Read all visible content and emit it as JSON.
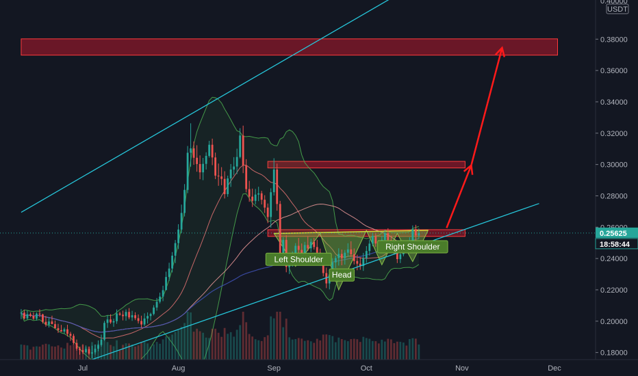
{
  "chart_data": {
    "type": "candlestick",
    "title": "",
    "currency_label": "USDT",
    "y_range": [
      0.165,
      0.405
    ],
    "y_ticks": [
      0.18,
      0.2,
      0.22,
      0.24,
      0.26,
      0.28,
      0.3,
      0.32,
      0.34,
      0.36,
      0.38
    ],
    "y_tick_labels": [
      "0.18000",
      "0.20000",
      "0.22000",
      "0.24000",
      "0.26000",
      "0.28000",
      "0.30000",
      "0.32000",
      "0.34000",
      "0.36000",
      "0.38000"
    ],
    "top_cut_label": "0.40000",
    "x_range": [
      -20,
      154
    ],
    "x_ticks": [
      {
        "label": "Jul",
        "day": 0
      },
      {
        "label": "Aug",
        "day": 31
      },
      {
        "label": "Sep",
        "day": 62
      },
      {
        "label": "Oct",
        "day": 92
      },
      {
        "label": "Nov",
        "day": 123
      },
      {
        "label": "Dec",
        "day": 153
      }
    ],
    "current_price": {
      "value": 0.25625,
      "label": "0.25625",
      "countdown": "18:58:44"
    },
    "grid": false,
    "colors": {
      "background": "#131722",
      "up": "#26a69a",
      "down": "#ef5350",
      "zone": "#b2182b",
      "trendline": "#26c6da",
      "arrow": "#ff1a1a",
      "pattern_fill": "#7cb342",
      "ma_slow": "#3f51b5",
      "ma_mid": "#e57373",
      "band": "#4caf50"
    },
    "zones": [
      {
        "y_low": 0.3698,
        "y_high": 0.3802,
        "day_from": -20,
        "day_to": 154
      },
      {
        "y_low": 0.2978,
        "y_high": 0.302,
        "day_from": 60,
        "day_to": 124
      },
      {
        "y_low": 0.2541,
        "y_high": 0.2584,
        "day_from": 60,
        "day_to": 124
      }
    ],
    "trendlines": [
      {
        "from": [
          -20,
          0.2695
        ],
        "to": [
          103,
          0.4095
        ]
      },
      {
        "from": [
          -13,
          0.1645
        ],
        "to": [
          148,
          0.2751
        ]
      }
    ],
    "projection_arrows": [
      {
        "from": [
          118,
          0.2595
        ],
        "to": [
          126,
          0.2995
        ]
      },
      {
        "from": [
          126,
          0.2995
        ],
        "to": [
          136,
          0.3745
        ]
      }
    ],
    "pattern": {
      "points": [
        [
          62,
          0.256
        ],
        [
          69,
          0.235
        ],
        [
          77,
          0.256
        ],
        [
          83,
          0.22
        ],
        [
          92,
          0.258
        ],
        [
          97,
          0.236
        ],
        [
          102,
          0.256
        ],
        [
          107,
          0.238
        ],
        [
          112,
          0.258
        ]
      ],
      "labels": [
        {
          "text": "Left Shoulder",
          "day": 70,
          "value": 0.2395
        },
        {
          "text": "Head",
          "day": 84,
          "value": 0.2295
        },
        {
          "text": "Right Shoulder",
          "day": 107,
          "value": 0.2475
        }
      ]
    },
    "series": [
      {
        "kind": "ohlc",
        "step_days": 1,
        "start_day": -20,
        "values": [
          [
            0.2052,
            0.2077,
            0.2013,
            0.2054
          ],
          [
            0.2054,
            0.2072,
            0.2011,
            0.2018
          ],
          [
            0.2018,
            0.2067,
            0.2009,
            0.2044
          ],
          [
            0.2044,
            0.2056,
            0.2026,
            0.2034
          ],
          [
            0.2034,
            0.2057,
            0.2008,
            0.2016
          ],
          [
            0.2016,
            0.2056,
            0.2004,
            0.2048
          ],
          [
            0.2048,
            0.2076,
            0.2026,
            0.2043
          ],
          [
            0.2043,
            0.2048,
            0.1985,
            0.1996
          ],
          [
            0.1996,
            0.2034,
            0.1965,
            0.1978
          ],
          [
            0.1978,
            0.2024,
            0.1959,
            0.1998
          ],
          [
            0.1998,
            0.2035,
            0.1983,
            0.1981
          ],
          [
            0.1981,
            0.2004,
            0.1954,
            0.1955
          ],
          [
            0.1955,
            0.1983,
            0.1925,
            0.1943
          ],
          [
            0.1943,
            0.1976,
            0.1932,
            0.1934
          ],
          [
            0.1934,
            0.1959,
            0.1922,
            0.1948
          ],
          [
            0.1948,
            0.1977,
            0.1902,
            0.1919
          ],
          [
            0.1919,
            0.1932,
            0.1874,
            0.1906
          ],
          [
            0.1906,
            0.1919,
            0.1852,
            0.1861
          ],
          [
            0.1861,
            0.1883,
            0.1812,
            0.1824
          ],
          [
            0.1824,
            0.1836,
            0.1786,
            0.1815
          ],
          [
            0.1815,
            0.1853,
            0.1792,
            0.1802
          ],
          [
            0.1802,
            0.1845,
            0.1798,
            0.1822
          ],
          [
            0.1822,
            0.1837,
            0.1786,
            0.1793
          ],
          [
            0.1793,
            0.1843,
            0.1763,
            0.1801
          ],
          [
            0.1801,
            0.1851,
            0.1787,
            0.1824
          ],
          [
            0.1824,
            0.1877,
            0.1808,
            0.1848
          ],
          [
            0.1848,
            0.1914,
            0.1837,
            0.1883
          ],
          [
            0.1883,
            0.2002,
            0.1875,
            0.1989
          ],
          [
            0.1989,
            0.2037,
            0.1957,
            0.2011
          ],
          [
            0.2011,
            0.2044,
            0.1983,
            0.1992
          ],
          [
            0.1992,
            0.2016,
            0.1964,
            0.2
          ],
          [
            0.2,
            0.2075,
            0.1983,
            0.2049
          ],
          [
            0.2049,
            0.206,
            0.2035,
            0.2041
          ],
          [
            0.2041,
            0.2067,
            0.2005,
            0.2032
          ],
          [
            0.2032,
            0.2075,
            0.2003,
            0.2059
          ],
          [
            0.2059,
            0.2083,
            0.2012,
            0.2024
          ],
          [
            0.2024,
            0.2066,
            0.2002,
            0.2038
          ],
          [
            0.2038,
            0.2057,
            0.2007,
            0.2019
          ],
          [
            0.2019,
            0.2043,
            0.1985,
            0.2001
          ],
          [
            0.2001,
            0.2035,
            0.1958,
            0.1979
          ],
          [
            0.1979,
            0.205,
            0.1969,
            0.2017
          ],
          [
            0.2017,
            0.2056,
            0.1985,
            0.2033
          ],
          [
            0.2033,
            0.2054,
            0.2005,
            0.2046
          ],
          [
            0.2046,
            0.2102,
            0.2037,
            0.2087
          ],
          [
            0.2087,
            0.2148,
            0.2067,
            0.2124
          ],
          [
            0.2124,
            0.2182,
            0.2113,
            0.2157
          ],
          [
            0.2157,
            0.2226,
            0.2128,
            0.2198
          ],
          [
            0.2198,
            0.2316,
            0.2198,
            0.2282
          ],
          [
            0.2282,
            0.2373,
            0.2257,
            0.2336
          ],
          [
            0.2336,
            0.2441,
            0.2311,
            0.2418
          ],
          [
            0.2418,
            0.2518,
            0.2371,
            0.2498
          ],
          [
            0.2498,
            0.2619,
            0.246,
            0.2585
          ],
          [
            0.2585,
            0.2744,
            0.2562,
            0.2691
          ],
          [
            0.2691,
            0.2875,
            0.2668,
            0.2838
          ],
          [
            0.2838,
            0.3118,
            0.2817,
            0.3075
          ],
          [
            0.3075,
            0.3263,
            0.2986,
            0.3103
          ],
          [
            0.3103,
            0.3147,
            0.2998,
            0.3043
          ],
          [
            0.3043,
            0.3123,
            0.2954,
            0.3003
          ],
          [
            0.3003,
            0.3058,
            0.2906,
            0.295
          ],
          [
            0.295,
            0.3042,
            0.29,
            0.3004
          ],
          [
            0.3004,
            0.3078,
            0.2968,
            0.3055
          ],
          [
            0.3055,
            0.3151,
            0.3044,
            0.3126
          ],
          [
            0.3126,
            0.3165,
            0.2996,
            0.3045
          ],
          [
            0.3045,
            0.3076,
            0.2907,
            0.2929
          ],
          [
            0.2929,
            0.3006,
            0.2864,
            0.2924
          ],
          [
            0.2924,
            0.2983,
            0.2868,
            0.2908
          ],
          [
            0.2908,
            0.2957,
            0.2783,
            0.2811
          ],
          [
            0.2811,
            0.2929,
            0.2794,
            0.2911
          ],
          [
            0.2911,
            0.3003,
            0.2857,
            0.2968
          ],
          [
            0.2968,
            0.3047,
            0.2931,
            0.2987
          ],
          [
            0.2987,
            0.3101,
            0.2939,
            0.3048
          ],
          [
            0.3048,
            0.3232,
            0.3039,
            0.3185
          ],
          [
            0.3185,
            0.3248,
            0.2945,
            0.2994
          ],
          [
            0.2994,
            0.3034,
            0.2822,
            0.2843
          ],
          [
            0.2843,
            0.2896,
            0.2762,
            0.2795
          ],
          [
            0.2795,
            0.2846,
            0.2729,
            0.2768
          ],
          [
            0.2768,
            0.2844,
            0.2745,
            0.2808
          ],
          [
            0.2808,
            0.2858,
            0.2766,
            0.2816
          ],
          [
            0.2816,
            0.2832,
            0.2745,
            0.2775
          ],
          [
            0.2775,
            0.2804,
            0.2691,
            0.2725
          ],
          [
            0.2725,
            0.2751,
            0.2626,
            0.2665
          ],
          [
            0.2665,
            0.2848,
            0.2597,
            0.2823
          ],
          [
            0.2823,
            0.304,
            0.2802,
            0.2968
          ],
          [
            0.2968,
            0.3006,
            0.2705,
            0.2748
          ],
          [
            0.2748,
            0.2768,
            0.2384,
            0.2417
          ],
          [
            0.2417,
            0.2536,
            0.2357,
            0.2519
          ],
          [
            0.2519,
            0.2548,
            0.2312,
            0.2347
          ],
          [
            0.2347,
            0.2413,
            0.2301,
            0.2363
          ],
          [
            0.2363,
            0.2445,
            0.2348,
            0.2425
          ],
          [
            0.2425,
            0.2498,
            0.2398,
            0.2481
          ],
          [
            0.2481,
            0.2531,
            0.2424,
            0.2455
          ],
          [
            0.2455,
            0.2496,
            0.2393,
            0.243
          ],
          [
            0.243,
            0.2506,
            0.2418,
            0.2486
          ],
          [
            0.2486,
            0.254,
            0.2448,
            0.2465
          ],
          [
            0.2465,
            0.2526,
            0.2441,
            0.2506
          ],
          [
            0.2506,
            0.2532,
            0.2457,
            0.2473
          ],
          [
            0.2473,
            0.252,
            0.2418,
            0.2437
          ],
          [
            0.2437,
            0.2463,
            0.2372,
            0.2398
          ],
          [
            0.2398,
            0.2416,
            0.2286,
            0.2307
          ],
          [
            0.2307,
            0.2342,
            0.2211,
            0.2241
          ],
          [
            0.2241,
            0.233,
            0.2203,
            0.2298
          ],
          [
            0.2298,
            0.2402,
            0.2282,
            0.2375
          ],
          [
            0.2375,
            0.2418,
            0.2339,
            0.2403
          ],
          [
            0.2403,
            0.2465,
            0.2355,
            0.2429
          ],
          [
            0.2429,
            0.2457,
            0.2357,
            0.2402
          ],
          [
            0.2402,
            0.2454,
            0.2361,
            0.2437
          ],
          [
            0.2437,
            0.2497,
            0.2411,
            0.2458
          ],
          [
            0.2458,
            0.251,
            0.241,
            0.2427
          ],
          [
            0.2427,
            0.2464,
            0.2362,
            0.2384
          ],
          [
            0.2384,
            0.2424,
            0.2325,
            0.2367
          ],
          [
            0.2367,
            0.2409,
            0.2328,
            0.2352
          ],
          [
            0.2352,
            0.2436,
            0.2321,
            0.2402
          ],
          [
            0.2402,
            0.2479,
            0.2372,
            0.2448
          ],
          [
            0.2448,
            0.2521,
            0.2419,
            0.2495
          ],
          [
            0.2495,
            0.2565,
            0.2478,
            0.2543
          ],
          [
            0.2543,
            0.2561,
            0.2475,
            0.2496
          ],
          [
            0.2496,
            0.2517,
            0.2446,
            0.2468
          ],
          [
            0.2468,
            0.2544,
            0.2448,
            0.2519
          ],
          [
            0.2519,
            0.2581,
            0.2497,
            0.2561
          ],
          [
            0.2561,
            0.2593,
            0.2491,
            0.2518
          ],
          [
            0.2518,
            0.2546,
            0.2448,
            0.2476
          ],
          [
            0.2476,
            0.2498,
            0.2425,
            0.2437
          ],
          [
            0.2437,
            0.2454,
            0.2371,
            0.2396
          ],
          [
            0.2396,
            0.2453,
            0.2371,
            0.2427
          ],
          [
            0.2427,
            0.2491,
            0.2414,
            0.2468
          ],
          [
            0.2468,
            0.2498,
            0.2441,
            0.2456
          ],
          [
            0.2456,
            0.2536,
            0.2436,
            0.2507
          ],
          [
            0.2507,
            0.2611,
            0.2505,
            0.2587
          ],
          [
            0.2587,
            0.2615,
            0.2512,
            0.2547
          ],
          [
            0.2547,
            0.2591,
            0.2527,
            0.2563
          ]
        ]
      }
    ]
  }
}
